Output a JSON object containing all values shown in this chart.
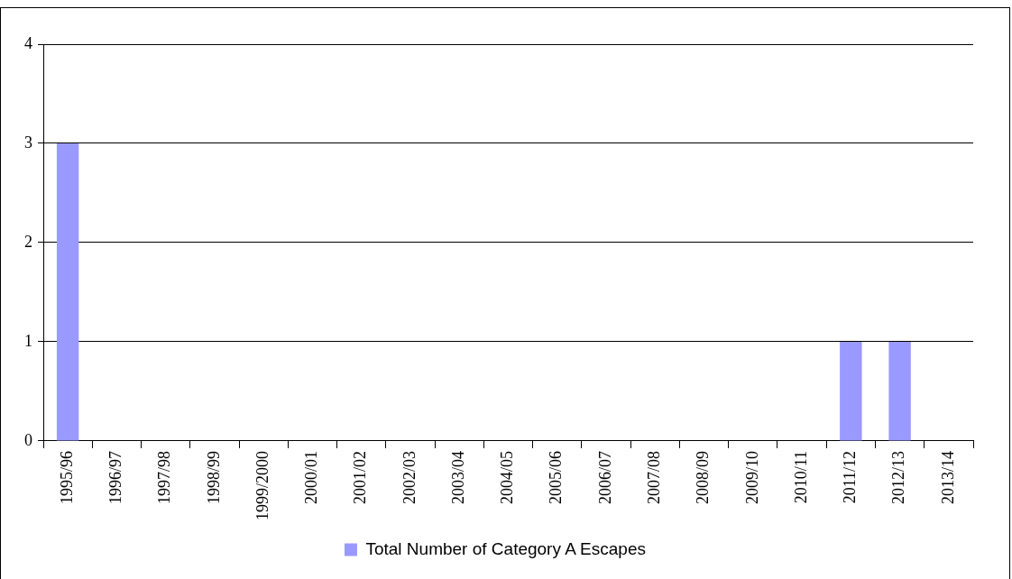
{
  "chart_data": {
    "type": "bar",
    "categories": [
      "1995/96",
      "1996/97",
      "1997/98",
      "1998/99",
      "1999/2000",
      "2000/01",
      "2001/02",
      "2002/03",
      "2003/04",
      "2004/05",
      "2005/06",
      "2006/07",
      "2007/08",
      "2008/09",
      "2009/10",
      "2010/11",
      "2011/12",
      "2012/13",
      "2013/14"
    ],
    "series": [
      {
        "name": "Total Number of Category A Escapes",
        "color": "#9999ff",
        "values": [
          3,
          0,
          0,
          0,
          0,
          0,
          0,
          0,
          0,
          0,
          0,
          0,
          0,
          0,
          0,
          0,
          1,
          1,
          0
        ]
      }
    ],
    "ylim": [
      0,
      4
    ],
    "yticks": [
      0,
      1,
      2,
      3,
      4
    ],
    "grid": "y",
    "legend": "bottom"
  }
}
